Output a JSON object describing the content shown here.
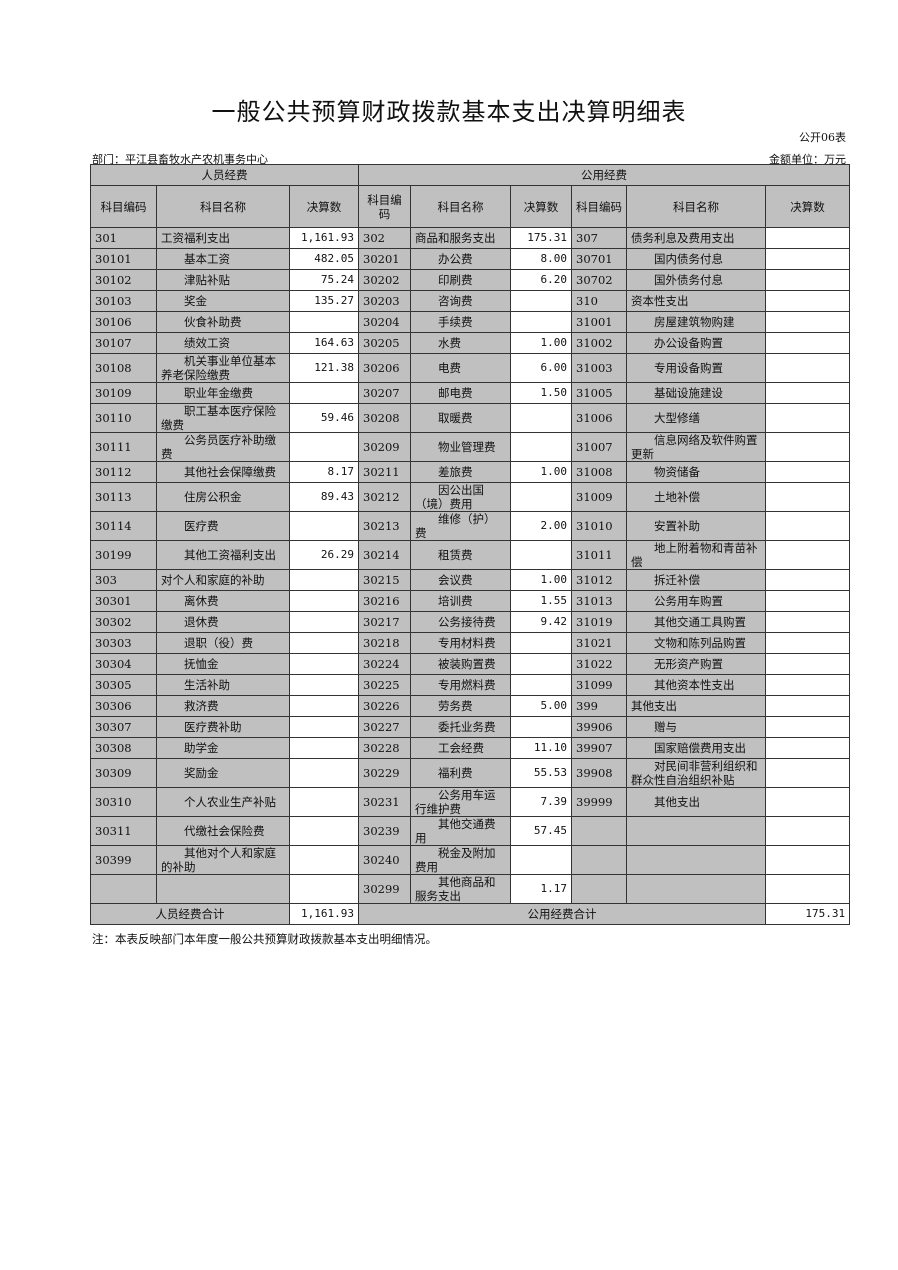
{
  "title": "一般公共预算财政拨款基本支出决算明细表",
  "form_no": "公开06表",
  "department": "部门：平江县畜牧水产农机事务中心",
  "unit": "金额单位：万元",
  "groups": {
    "personnel": "人员经费",
    "public": "公用经费"
  },
  "columns": {
    "code": "科目编码",
    "code_short": "科目编码",
    "name": "科目名称",
    "amount": "决算数"
  },
  "rows": [
    {
      "c1": "301",
      "n1": "工资福利支出",
      "s1": false,
      "v1": "1,161.93",
      "c2": "302",
      "n2": "商品和服务支出",
      "s2": false,
      "v2": "175.31",
      "c3": "307",
      "n3": "债务利息及费用支出",
      "s3": false,
      "v3": ""
    },
    {
      "c1": "30101",
      "n1": "基本工资",
      "s1": true,
      "v1": "482.05",
      "c2": "30201",
      "n2": "办公费",
      "s2": true,
      "v2": "8.00",
      "c3": "30701",
      "n3": "国内债务付息",
      "s3": true,
      "v3": ""
    },
    {
      "c1": "30102",
      "n1": "津贴补贴",
      "s1": true,
      "v1": "75.24",
      "c2": "30202",
      "n2": "印刷费",
      "s2": true,
      "v2": "6.20",
      "c3": "30702",
      "n3": "国外债务付息",
      "s3": true,
      "v3": ""
    },
    {
      "c1": "30103",
      "n1": "奖金",
      "s1": true,
      "v1": "135.27",
      "c2": "30203",
      "n2": "咨询费",
      "s2": true,
      "v2": "",
      "c3": "310",
      "n3": "资本性支出",
      "s3": false,
      "v3": ""
    },
    {
      "c1": "30106",
      "n1": "伙食补助费",
      "s1": true,
      "v1": "",
      "c2": "30204",
      "n2": "手续费",
      "s2": true,
      "v2": "",
      "c3": "31001",
      "n3": "房屋建筑物购建",
      "s3": true,
      "v3": ""
    },
    {
      "c1": "30107",
      "n1": "绩效工资",
      "s1": true,
      "v1": "164.63",
      "c2": "30205",
      "n2": "水费",
      "s2": true,
      "v2": "1.00",
      "c3": "31002",
      "n3": "办公设备购置",
      "s3": true,
      "v3": ""
    },
    {
      "c1": "30108",
      "n1": "机关事业单位基本养老保险缴费",
      "s1": true,
      "v1": "121.38",
      "c2": "30206",
      "n2": "电费",
      "s2": true,
      "v2": "6.00",
      "c3": "31003",
      "n3": "专用设备购置",
      "s3": true,
      "v3": ""
    },
    {
      "c1": "30109",
      "n1": "职业年金缴费",
      "s1": true,
      "v1": "",
      "c2": "30207",
      "n2": "邮电费",
      "s2": true,
      "v2": "1.50",
      "c3": "31005",
      "n3": "基础设施建设",
      "s3": true,
      "v3": ""
    },
    {
      "c1": "30110",
      "n1": "职工基本医疗保险缴费",
      "s1": true,
      "v1": "59.46",
      "c2": "30208",
      "n2": "取暖费",
      "s2": true,
      "v2": "",
      "c3": "31006",
      "n3": "大型修缮",
      "s3": true,
      "v3": ""
    },
    {
      "c1": "30111",
      "n1": "公务员医疗补助缴费",
      "s1": true,
      "v1": "",
      "c2": "30209",
      "n2": "物业管理费",
      "s2": true,
      "v2": "",
      "c3": "31007",
      "n3": "信息网络及软件购置更新",
      "s3": true,
      "v3": ""
    },
    {
      "c1": "30112",
      "n1": "其他社会保障缴费",
      "s1": true,
      "v1": "8.17",
      "c2": "30211",
      "n2": "差旅费",
      "s2": true,
      "v2": "1.00",
      "c3": "31008",
      "n3": "物资储备",
      "s3": true,
      "v3": ""
    },
    {
      "c1": "30113",
      "n1": "住房公积金",
      "s1": true,
      "v1": "89.43",
      "c2": "30212",
      "n2": "因公出国（境）费用",
      "s2": true,
      "v2": "",
      "c3": "31009",
      "n3": "土地补偿",
      "s3": true,
      "v3": ""
    },
    {
      "c1": "30114",
      "n1": "医疗费",
      "s1": true,
      "v1": "",
      "c2": "30213",
      "n2": "维修（护）费",
      "s2": true,
      "v2": "2.00",
      "c3": "31010",
      "n3": "安置补助",
      "s3": true,
      "v3": ""
    },
    {
      "c1": "30199",
      "n1": "其他工资福利支出",
      "s1": true,
      "v1": "26.29",
      "c2": "30214",
      "n2": "租赁费",
      "s2": true,
      "v2": "",
      "c3": "31011",
      "n3": "地上附着物和青苗补偿",
      "s3": true,
      "v3": ""
    },
    {
      "c1": "303",
      "n1": "对个人和家庭的补助",
      "s1": false,
      "v1": "",
      "c2": "30215",
      "n2": "会议费",
      "s2": true,
      "v2": "1.00",
      "c3": "31012",
      "n3": "拆迁补偿",
      "s3": true,
      "v3": ""
    },
    {
      "c1": "30301",
      "n1": "离休费",
      "s1": true,
      "v1": "",
      "c2": "30216",
      "n2": "培训费",
      "s2": true,
      "v2": "1.55",
      "c3": "31013",
      "n3": "公务用车购置",
      "s3": true,
      "v3": ""
    },
    {
      "c1": "30302",
      "n1": "退休费",
      "s1": true,
      "v1": "",
      "c2": "30217",
      "n2": "公务接待费",
      "s2": true,
      "v2": "9.42",
      "c3": "31019",
      "n3": "其他交通工具购置",
      "s3": true,
      "v3": ""
    },
    {
      "c1": "30303",
      "n1": "退职（役）费",
      "s1": true,
      "v1": "",
      "c2": "30218",
      "n2": "专用材料费",
      "s2": true,
      "v2": "",
      "c3": "31021",
      "n3": "文物和陈列品购置",
      "s3": true,
      "v3": ""
    },
    {
      "c1": "30304",
      "n1": "抚恤金",
      "s1": true,
      "v1": "",
      "c2": "30224",
      "n2": "被装购置费",
      "s2": true,
      "v2": "",
      "c3": "31022",
      "n3": "无形资产购置",
      "s3": true,
      "v3": ""
    },
    {
      "c1": "30305",
      "n1": "生活补助",
      "s1": true,
      "v1": "",
      "c2": "30225",
      "n2": "专用燃料费",
      "s2": true,
      "v2": "",
      "c3": "31099",
      "n3": "其他资本性支出",
      "s3": true,
      "v3": ""
    },
    {
      "c1": "30306",
      "n1": "救济费",
      "s1": true,
      "v1": "",
      "c2": "30226",
      "n2": "劳务费",
      "s2": true,
      "v2": "5.00",
      "c3": "399",
      "n3": "其他支出",
      "s3": false,
      "v3": ""
    },
    {
      "c1": "30307",
      "n1": "医疗费补助",
      "s1": true,
      "v1": "",
      "c2": "30227",
      "n2": "委托业务费",
      "s2": true,
      "v2": "",
      "c3": "39906",
      "n3": "赠与",
      "s3": true,
      "v3": ""
    },
    {
      "c1": "30308",
      "n1": "助学金",
      "s1": true,
      "v1": "",
      "c2": "30228",
      "n2": "工会经费",
      "s2": true,
      "v2": "11.10",
      "c3": "39907",
      "n3": "国家赔偿费用支出",
      "s3": true,
      "v3": ""
    },
    {
      "c1": "30309",
      "n1": "奖励金",
      "s1": true,
      "v1": "",
      "c2": "30229",
      "n2": "福利费",
      "s2": true,
      "v2": "55.53",
      "c3": "39908",
      "n3": "对民间非营利组织和群众性自治组织补贴",
      "s3": true,
      "v3": ""
    },
    {
      "c1": "30310",
      "n1": "个人农业生产补贴",
      "s1": true,
      "v1": "",
      "c2": "30231",
      "n2": "公务用车运行维护费",
      "s2": true,
      "v2": "7.39",
      "c3": "39999",
      "n3": "其他支出",
      "s3": true,
      "v3": ""
    },
    {
      "c1": "30311",
      "n1": "代缴社会保险费",
      "s1": true,
      "v1": "",
      "c2": "30239",
      "n2": "其他交通费用",
      "s2": true,
      "v2": "57.45",
      "c3": "",
      "n3": "",
      "s3": false,
      "v3": ""
    },
    {
      "c1": "30399",
      "n1": "其他对个人和家庭的补助",
      "s1": true,
      "v1": "",
      "c2": "30240",
      "n2": "税金及附加费用",
      "s2": true,
      "v2": "",
      "c3": "",
      "n3": "",
      "s3": false,
      "v3": ""
    },
    {
      "c1": "",
      "n1": "",
      "s1": false,
      "v1": "",
      "c2": "30299",
      "n2": "其他商品和服务支出",
      "s2": true,
      "v2": "1.17",
      "c3": "",
      "n3": "",
      "s3": false,
      "v3": ""
    }
  ],
  "totals": {
    "personnel_label": "人员经费合计",
    "personnel_value": "1,161.93",
    "public_label": "公用经费合计",
    "public_value": "175.31"
  },
  "note": "注：本表反映部门本年度一般公共预算财政拨款基本支出明细情况。"
}
